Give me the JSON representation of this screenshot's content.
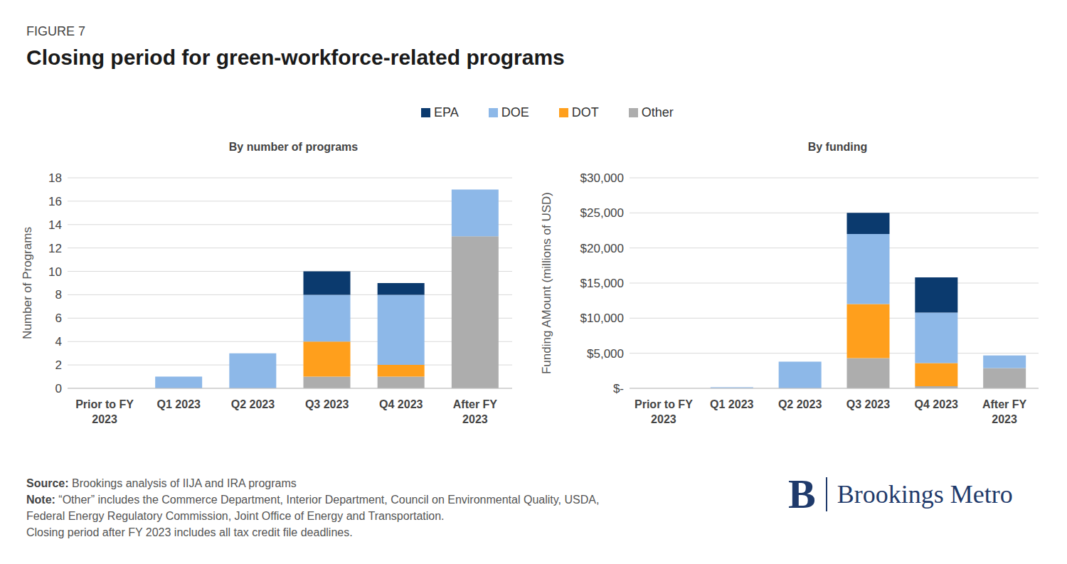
{
  "figure_label": "FIGURE 7",
  "title": "Closing period for green-workforce-related programs",
  "source_label": "Source:",
  "source": "Brookings analysis of IIJA and IRA programs",
  "note_label": "Note:",
  "note": [
    "“Other” includes the Commerce Department, Interior Department, Council on Environmental Quality, USDA,",
    "Federal Energy Regulatory Commission, Joint Office of Energy and Transportation.",
    "Closing period after FY 2023 includes all tax credit file deadlines."
  ],
  "logo": {
    "mark": "B",
    "name": "Brookings Metro"
  },
  "chart_data": [
    {
      "type": "bar",
      "title": "By number of programs",
      "y_label": "Number of Programs",
      "stacked": true,
      "grid": true,
      "legend": "top",
      "categories": [
        "Prior to FY 2023",
        "Q1 2023",
        "Q2 2023",
        "Q3 2023",
        "Q4 2023",
        "After FY 2023"
      ],
      "series": [
        {
          "name": "EPA",
          "color": "#0b3a6e",
          "values": [
            0,
            0,
            0,
            2,
            1,
            0
          ]
        },
        {
          "name": "DOE",
          "color": "#8db8e8",
          "values": [
            0,
            1,
            3,
            4,
            6,
            4
          ]
        },
        {
          "name": "DOT",
          "color": "#ff9f1c",
          "values": [
            0,
            0,
            0,
            3,
            1,
            0
          ]
        },
        {
          "name": "Other",
          "color": "#adadad",
          "values": [
            0,
            0,
            0,
            1,
            1,
            13
          ]
        }
      ],
      "ylim": [
        0,
        18
      ],
      "yticks": [
        0,
        2,
        4,
        6,
        8,
        10,
        12,
        14,
        16,
        18
      ]
    },
    {
      "type": "bar",
      "title": "By funding",
      "y_label": "Funding AMount (millions of USD)",
      "stacked": true,
      "grid": true,
      "categories": [
        "Prior to FY 2023",
        "Q1 2023",
        "Q2 2023",
        "Q3 2023",
        "Q4 2023",
        "After FY 2023"
      ],
      "series": [
        {
          "name": "EPA",
          "color": "#0b3a6e",
          "values": [
            0,
            0,
            0,
            3000,
            5000,
            0
          ]
        },
        {
          "name": "DOE",
          "color": "#8db8e8",
          "values": [
            0,
            150,
            3800,
            10000,
            7200,
            1800
          ]
        },
        {
          "name": "DOT",
          "color": "#ff9f1c",
          "values": [
            0,
            0,
            0,
            7700,
            3300,
            0
          ]
        },
        {
          "name": "Other",
          "color": "#adadad",
          "values": [
            0,
            0,
            0,
            4300,
            300,
            2900
          ]
        }
      ],
      "ylim": [
        0,
        30000
      ],
      "yticks": [
        {
          "value": 0,
          "label": "$-"
        },
        {
          "value": 5000,
          "label": "$5,000"
        },
        {
          "value": 10000,
          "label": "$10,000"
        },
        {
          "value": 15000,
          "label": "$15,000"
        },
        {
          "value": 20000,
          "label": "$20,000"
        },
        {
          "value": 25000,
          "label": "$25,000"
        },
        {
          "value": 30000,
          "label": "$30,000"
        }
      ]
    }
  ]
}
